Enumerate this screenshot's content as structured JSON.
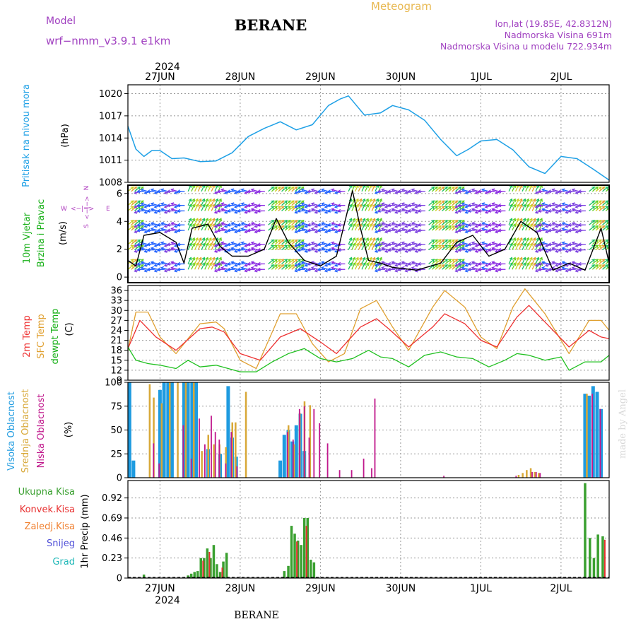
{
  "header": {
    "model_label": "Model",
    "model_name": "wrf−nmm_v3.9.1  e1km",
    "title": "BERANE",
    "meteogram_label": "Meteogram",
    "location_lines": [
      "lon,lat (19.85E, 42.8312N)",
      "Nadmorska Visina 691m",
      "Nadmorska Visina u modelu 722.934m"
    ],
    "footer_title": "BERANE",
    "watermark": "made by Angel"
  },
  "colors": {
    "pressure": "#1ea0e6",
    "t2m": "#ee3030",
    "sfc": "#e0a030",
    "dewpt": "#20c020",
    "high": "#1e9be0",
    "mid": "#d8a838",
    "low": "#c0188c",
    "total_precip": "#3aa030",
    "conv": "#e83030",
    "frz": "#f08030",
    "snow": "#5050d8",
    "grad": "#20b8b8",
    "wind_label": "#18b018",
    "arrow_label": "#b040c0",
    "header_purple": "#a040c0",
    "meteogram": "#e8b850"
  },
  "time_axis": {
    "year": "2024",
    "start_day": 26.6,
    "end_day": 32.6,
    "day_labels": [
      "27JUN",
      "28JUN",
      "29JUN",
      "30JUN",
      "1JUL",
      "2JUL"
    ],
    "day_positions": [
      27,
      28,
      29,
      30,
      31,
      32
    ]
  },
  "panels": {
    "pressure": {
      "ylabel": "Pritisak na nivou mora",
      "unit": "(hPa)",
      "ticks": [
        "1008",
        "1011",
        "1014",
        "1017",
        "1020"
      ],
      "ylim": [
        1008,
        1021.2
      ]
    },
    "wind": {
      "ylabel_1": "10m Vjetar",
      "ylabel_2": "Brzina i Pravac",
      "unit": "(m/s)",
      "ticks": [
        "0",
        "2",
        "4",
        "6"
      ],
      "ylim": [
        -0.4,
        6.6
      ],
      "dir_n": "N",
      "dir_w": "W",
      "dir_e": "E",
      "dir_s": "S",
      "dir_arrows": "<−|−>"
    },
    "temp": {
      "ylabel_1": "2m Temp",
      "ylabel_2": "SFC Temp",
      "ylabel_3": "dewpt Temp",
      "unit": "(C)",
      "ticks": [
        "9",
        "12",
        "15",
        "18",
        "21",
        "24",
        "27",
        "30",
        "33",
        "36"
      ],
      "ylim": [
        9,
        37.5
      ]
    },
    "cloud": {
      "ylabel_1": "Visoka Oblacnost",
      "ylabel_2": "Srednja Oblacnost",
      "ylabel_3": "Niska Oblacnost",
      "unit": "(%)",
      "ticks": [
        "0",
        "25",
        "50",
        "75",
        "100"
      ],
      "ylim": [
        0,
        100
      ]
    },
    "precip": {
      "ylabel": "1hr Precip (mm)",
      "ticks": [
        "0",
        "0.23",
        "0.46",
        "0.69",
        "0.92"
      ],
      "ylim": [
        0,
        1.12
      ],
      "legend": [
        "Ukupna Kisa",
        "Konvek.Kisa",
        "Zaledj.Kisa",
        "Snijeg",
        "Grad"
      ]
    }
  },
  "chart_data": [
    {
      "type": "line",
      "series": [
        {
          "name": "Pritisak na nivou mora",
          "x": [
            26.6,
            26.7,
            26.8,
            26.9,
            27.0,
            27.15,
            27.3,
            27.5,
            27.7,
            27.9,
            28.1,
            28.3,
            28.5,
            28.7,
            28.9,
            29.1,
            29.25,
            29.35,
            29.55,
            29.75,
            29.9,
            30.1,
            30.3,
            30.5,
            30.7,
            30.85,
            31.0,
            31.2,
            31.4,
            31.6,
            31.8,
            32.0,
            32.2,
            32.4,
            32.6
          ],
          "values": [
            1015.6,
            1012.5,
            1011.5,
            1012.3,
            1012.3,
            1011.2,
            1011.3,
            1010.8,
            1010.9,
            1012.0,
            1014.2,
            1015.3,
            1016.2,
            1015.1,
            1015.8,
            1018.4,
            1019.3,
            1019.7,
            1017.1,
            1017.4,
            1018.4,
            1017.8,
            1016.4,
            1013.8,
            1011.6,
            1012.5,
            1013.6,
            1013.8,
            1012.4,
            1010.1,
            1009.2,
            1011.5,
            1011.2,
            1009.8,
            1008.3
          ]
        }
      ]
    },
    {
      "type": "line",
      "note": "10m wind speed (m/s) with direction arrows",
      "series": [
        {
          "name": "10m Vjetar",
          "x": [
            26.6,
            26.7,
            26.8,
            27.0,
            27.2,
            27.3,
            27.4,
            27.6,
            27.75,
            27.9,
            28.1,
            28.3,
            28.45,
            28.6,
            28.8,
            29.0,
            29.2,
            29.4,
            29.5,
            29.6,
            29.75,
            29.9,
            30.2,
            30.5,
            30.7,
            30.9,
            31.1,
            31.3,
            31.5,
            31.7,
            31.9,
            32.1,
            32.3,
            32.5,
            32.6
          ],
          "values": [
            1.2,
            0.8,
            3.0,
            3.2,
            2.5,
            1.0,
            3.5,
            3.8,
            2.2,
            1.5,
            1.5,
            2.0,
            4.2,
            2.5,
            1.2,
            0.8,
            1.5,
            6.2,
            3.5,
            1.2,
            1.0,
            0.7,
            0.5,
            1.0,
            2.5,
            3.0,
            1.5,
            2.0,
            4.0,
            3.2,
            0.5,
            1.0,
            0.5,
            3.5,
            1.0
          ]
        }
      ]
    },
    {
      "type": "line",
      "series": [
        {
          "name": "2m Temp",
          "x": [
            26.6,
            26.75,
            26.95,
            27.2,
            27.5,
            27.65,
            27.8,
            28.0,
            28.25,
            28.5,
            28.75,
            29.0,
            29.2,
            29.5,
            29.7,
            29.85,
            30.1,
            30.4,
            30.55,
            30.8,
            31.0,
            31.2,
            31.45,
            31.6,
            31.8,
            32.1,
            32.35,
            32.5,
            32.6
          ],
          "values": [
            18.5,
            27.0,
            22.0,
            18.0,
            24.5,
            25.0,
            23.5,
            17.0,
            15.0,
            22.0,
            24.5,
            20.5,
            17.0,
            25.0,
            27.5,
            24.5,
            19.0,
            25.0,
            29.0,
            26.0,
            21.0,
            19.0,
            28.0,
            31.5,
            26.5,
            19.0,
            24.0,
            22.0,
            21.5
          ]
        },
        {
          "name": "SFC Temp",
          "x": [
            26.6,
            26.7,
            26.85,
            27.0,
            27.2,
            27.5,
            27.7,
            27.8,
            28.0,
            28.2,
            28.5,
            28.7,
            28.9,
            29.1,
            29.3,
            29.5,
            29.7,
            29.9,
            30.1,
            30.4,
            30.55,
            30.8,
            31.0,
            31.2,
            31.4,
            31.55,
            31.8,
            32.1,
            32.35,
            32.5,
            32.6
          ],
          "values": [
            18.0,
            29.5,
            29.5,
            22.0,
            17.0,
            26.0,
            26.5,
            24.5,
            15.0,
            12.5,
            29.0,
            29.0,
            20.0,
            14.5,
            17.0,
            30.5,
            33.0,
            25.0,
            18.0,
            31.0,
            36.0,
            31.0,
            22.0,
            18.5,
            31.0,
            36.5,
            29.0,
            17.0,
            27.0,
            27.0,
            24.0
          ]
        },
        {
          "name": "dewpt Temp",
          "x": [
            26.6,
            26.7,
            26.85,
            27.0,
            27.2,
            27.35,
            27.5,
            27.7,
            27.85,
            28.0,
            28.2,
            28.4,
            28.6,
            28.8,
            29.0,
            29.2,
            29.4,
            29.6,
            29.75,
            29.9,
            30.1,
            30.3,
            30.5,
            30.7,
            30.9,
            31.1,
            31.3,
            31.45,
            31.6,
            31.8,
            32.0,
            32.1,
            32.3,
            32.5,
            32.6
          ],
          "values": [
            19.0,
            15.0,
            14.0,
            13.5,
            12.5,
            15.0,
            13.0,
            13.5,
            12.5,
            11.5,
            11.5,
            14.5,
            17.0,
            18.5,
            15.5,
            14.5,
            15.5,
            18.0,
            16.0,
            15.5,
            13.0,
            16.5,
            17.5,
            16.0,
            15.5,
            13.0,
            15.0,
            17.0,
            16.5,
            15.0,
            16.0,
            12.0,
            14.5,
            14.5,
            16.5
          ]
        }
      ]
    },
    {
      "type": "bar",
      "series": [
        {
          "name": "Visoka Oblacnost",
          "x": [
            26.62,
            26.67,
            27.0,
            27.05,
            27.1,
            27.15,
            27.3,
            27.35,
            27.4,
            27.45,
            27.6,
            27.75,
            27.85,
            27.9,
            27.95,
            28.5,
            28.55,
            28.6,
            28.65,
            28.7,
            28.75,
            28.8,
            32.3,
            32.35,
            32.4,
            32.45,
            32.5
          ],
          "values": [
            100,
            18,
            92,
            100,
            100,
            100,
            100,
            100,
            100,
            100,
            30,
            25,
            96,
            42,
            22,
            18,
            45,
            50,
            38,
            55,
            67,
            28,
            88,
            86,
            96,
            90,
            72
          ]
        },
        {
          "name": "Srednja Oblacnost",
          "x": [
            26.85,
            26.9,
            27.0,
            27.1,
            27.2,
            27.3,
            27.4,
            27.5,
            27.58,
            27.65,
            27.72,
            27.8,
            27.88,
            27.92,
            28.05,
            28.58,
            28.65,
            28.72,
            28.78,
            28.85,
            31.45,
            31.5,
            31.55,
            31.6,
            31.65,
            31.7,
            32.3
          ],
          "values": [
            98,
            84,
            78,
            100,
            100,
            100,
            100,
            28,
            45,
            35,
            35,
            32,
            58,
            58,
            90,
            55,
            35,
            68,
            80,
            76,
            3,
            5,
            8,
            10,
            6,
            5,
            88
          ]
        },
        {
          "name": "Niska Oblacnost",
          "x": [
            26.88,
            26.95,
            27.25,
            27.35,
            27.45,
            27.52,
            27.6,
            27.65,
            27.7,
            27.78,
            27.85,
            27.92,
            28.55,
            28.62,
            28.7,
            28.76,
            28.82,
            28.88,
            28.95,
            29.05,
            29.2,
            29.35,
            29.5,
            29.6,
            29.64,
            30.5,
            31.4,
            31.6,
            31.65,
            31.7,
            32.35,
            32.45
          ],
          "values": [
            36,
            15,
            55,
            20,
            62,
            35,
            65,
            48,
            40,
            15,
            48,
            12,
            48,
            40,
            72,
            75,
            42,
            72,
            57,
            36,
            8,
            8,
            20,
            10,
            83,
            2,
            2,
            6,
            6,
            5,
            88,
            72
          ]
        }
      ]
    },
    {
      "type": "bar",
      "series": [
        {
          "name": "Ukupna Kisa",
          "x": [
            26.8,
            27.35,
            27.39,
            27.43,
            27.47,
            27.51,
            27.55,
            27.59,
            27.63,
            27.67,
            27.71,
            27.75,
            27.79,
            27.83,
            28.55,
            28.6,
            28.64,
            28.68,
            28.72,
            28.76,
            28.8,
            28.84,
            28.88,
            28.92,
            32.3,
            32.36,
            32.41,
            32.46,
            32.52
          ],
          "values": [
            0.04,
            0.03,
            0.05,
            0.07,
            0.08,
            0.23,
            0.23,
            0.34,
            0.23,
            0.38,
            0.16,
            0.07,
            0.19,
            0.29,
            0.08,
            0.14,
            0.6,
            0.51,
            0.43,
            0.38,
            0.69,
            0.69,
            0.21,
            0.18,
            1.09,
            0.46,
            0.23,
            0.5,
            0.48
          ]
        },
        {
          "name": "Konvek.Kisa",
          "x": [
            27.51,
            27.59,
            27.75,
            28.68,
            28.8,
            32.52
          ],
          "values": [
            0.2,
            0.3,
            0.12,
            0.42,
            0.6,
            0.44
          ]
        }
      ]
    }
  ]
}
